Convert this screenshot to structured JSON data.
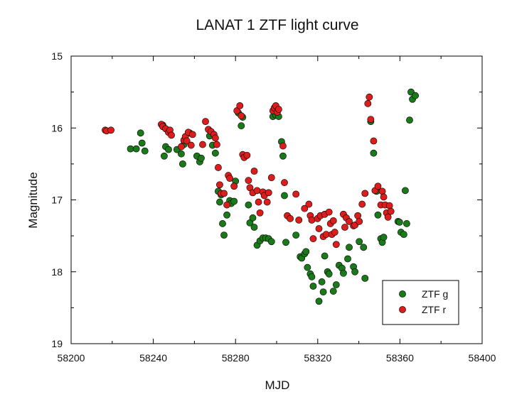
{
  "chart_data": {
    "type": "scatter",
    "title": "LANAT 1 ZTF light curve",
    "xlabel": "MJD",
    "ylabel": "Magnitude",
    "xlim": [
      58200,
      58400
    ],
    "ylim": [
      15,
      19
    ],
    "y_inverted": true,
    "x_ticks": [
      58200,
      58240,
      58280,
      58320,
      58360,
      58400
    ],
    "y_ticks": [
      15,
      16,
      17,
      18,
      19
    ],
    "grid": false,
    "legend_position": "bottom-right",
    "series": [
      {
        "name": "ZTF g",
        "color": "#1a7a1a",
        "points": [
          [
            58228.9,
            16.29
          ],
          [
            58231.7,
            16.29
          ],
          [
            58233.8,
            16.07
          ],
          [
            58234.5,
            16.21
          ],
          [
            58235.9,
            16.32
          ],
          [
            58244.6,
            15.96
          ],
          [
            58245.3,
            16.39
          ],
          [
            58246.0,
            16.26
          ],
          [
            58247.4,
            16.3
          ],
          [
            58251.5,
            16.3
          ],
          [
            58253.6,
            16.36
          ],
          [
            58254.3,
            16.5
          ],
          [
            58254.9,
            16.23
          ],
          [
            58257.7,
            16.07
          ],
          [
            58261.2,
            16.39
          ],
          [
            58262.6,
            16.47
          ],
          [
            58263.3,
            16.42
          ],
          [
            58267.4,
            16.11
          ],
          [
            58268.8,
            16.24
          ],
          [
            58270.2,
            16.35
          ],
          [
            58271.6,
            16.88
          ],
          [
            58272.3,
            17.03
          ],
          [
            58273.0,
            16.93
          ],
          [
            58273.7,
            17.33
          ],
          [
            58274.4,
            17.49
          ],
          [
            58275.8,
            17.21
          ],
          [
            58277.2,
            17.01
          ],
          [
            58277.9,
            17.05
          ],
          [
            58279.3,
            17.02
          ],
          [
            58280.0,
            16.74
          ],
          [
            58281.4,
            15.79
          ],
          [
            58282.8,
            15.97
          ],
          [
            58283.5,
            15.85
          ],
          [
            58286.3,
            17.07
          ],
          [
            58287.0,
            17.32
          ],
          [
            58288.4,
            17.25
          ],
          [
            58289.1,
            17.38
          ],
          [
            58290.5,
            17.63
          ],
          [
            58291.9,
            17.57
          ],
          [
            58293.3,
            17.53
          ],
          [
            58294.7,
            17.53
          ],
          [
            58296.1,
            17.54
          ],
          [
            58297.5,
            17.58
          ],
          [
            58298.2,
            15.84
          ],
          [
            58299.6,
            15.82
          ],
          [
            58301.0,
            15.84
          ],
          [
            58302.4,
            16.19
          ],
          [
            58303.1,
            16.39
          ],
          [
            58303.8,
            16.94
          ],
          [
            58304.5,
            17.59
          ],
          [
            58309.4,
            17.49
          ],
          [
            58311.5,
            17.79
          ],
          [
            58312.2,
            17.81
          ],
          [
            58313.6,
            17.75
          ],
          [
            58314.3,
            17.72
          ],
          [
            58315.0,
            17.94
          ],
          [
            58316.4,
            18.03
          ],
          [
            58317.1,
            18.07
          ],
          [
            58317.8,
            18.2
          ],
          [
            58320.6,
            18.41
          ],
          [
            58322.0,
            18.14
          ],
          [
            58322.7,
            18.28
          ],
          [
            58323.4,
            17.78
          ],
          [
            58324.8,
            18.0
          ],
          [
            58325.5,
            18.03
          ],
          [
            58327.6,
            18.27
          ],
          [
            58329.0,
            18.18
          ],
          [
            58330.4,
            17.91
          ],
          [
            58331.8,
            17.95
          ],
          [
            58332.5,
            18.02
          ],
          [
            58334.6,
            17.82
          ],
          [
            58335.3,
            17.66
          ],
          [
            58337.4,
            17.93
          ],
          [
            58338.1,
            18.0
          ],
          [
            58340.2,
            17.58
          ],
          [
            58342.3,
            17.66
          ],
          [
            58343.0,
            18.09
          ],
          [
            58345.8,
            15.91
          ],
          [
            58347.2,
            16.35
          ],
          [
            58348.6,
            16.88
          ],
          [
            58349.3,
            17.21
          ],
          [
            58350.7,
            17.54
          ],
          [
            58351.4,
            17.59
          ],
          [
            58352.1,
            17.52
          ],
          [
            58359.1,
            17.3
          ],
          [
            58359.8,
            17.31
          ],
          [
            58360.5,
            17.45
          ],
          [
            58361.9,
            17.48
          ],
          [
            58362.6,
            16.87
          ],
          [
            58363.3,
            17.33
          ],
          [
            58364.7,
            15.89
          ],
          [
            58365.4,
            15.5
          ],
          [
            58366.1,
            15.6
          ],
          [
            58367.5,
            15.55
          ]
        ]
      },
      {
        "name": "ZTF r",
        "color": "#dd1c1c",
        "points": [
          [
            58216.6,
            16.03
          ],
          [
            58217.3,
            16.04
          ],
          [
            58219.4,
            16.03
          ],
          [
            58243.9,
            15.95
          ],
          [
            58244.6,
            15.98
          ],
          [
            58246.0,
            16.01
          ],
          [
            58247.4,
            16.06
          ],
          [
            58248.1,
            16.03
          ],
          [
            58248.8,
            16.1
          ],
          [
            58253.6,
            16.26
          ],
          [
            58254.9,
            16.17
          ],
          [
            58255.6,
            16.12
          ],
          [
            58256.3,
            16.18
          ],
          [
            58257.0,
            16.06
          ],
          [
            58258.4,
            16.24
          ],
          [
            58259.1,
            16.09
          ],
          [
            58264.0,
            16.23
          ],
          [
            58265.4,
            15.91
          ],
          [
            58266.8,
            16.02
          ],
          [
            58268.1,
            16.05
          ],
          [
            58269.5,
            16.09
          ],
          [
            58270.2,
            16.14
          ],
          [
            58270.9,
            16.23
          ],
          [
            58271.6,
            16.55
          ],
          [
            58272.3,
            16.79
          ],
          [
            58273.0,
            16.91
          ],
          [
            58274.4,
            16.91
          ],
          [
            58275.8,
            17.07
          ],
          [
            58276.5,
            16.66
          ],
          [
            58277.2,
            16.7
          ],
          [
            58279.3,
            16.81
          ],
          [
            58280.7,
            15.76
          ],
          [
            58282.1,
            15.69
          ],
          [
            58282.8,
            15.83
          ],
          [
            58283.5,
            16.37
          ],
          [
            58284.2,
            16.41
          ],
          [
            58285.6,
            16.38
          ],
          [
            58286.3,
            16.73
          ],
          [
            58287.0,
            16.83
          ],
          [
            58288.4,
            16.9
          ],
          [
            58289.1,
            16.6
          ],
          [
            58290.5,
            16.87
          ],
          [
            58291.2,
            17.03
          ],
          [
            58291.9,
            17.18
          ],
          [
            58293.3,
            16.89
          ],
          [
            58294.0,
            16.94
          ],
          [
            58295.4,
            17.03
          ],
          [
            58296.1,
            16.9
          ],
          [
            58297.5,
            16.69
          ],
          [
            58298.2,
            15.76
          ],
          [
            58298.9,
            15.72
          ],
          [
            58299.6,
            15.69
          ],
          [
            58300.3,
            15.78
          ],
          [
            58301.0,
            15.74
          ],
          [
            58303.1,
            16.25
          ],
          [
            58303.8,
            16.76
          ],
          [
            58305.2,
            17.22
          ],
          [
            58306.6,
            17.26
          ],
          [
            58309.4,
            16.92
          ],
          [
            58310.8,
            17.28
          ],
          [
            58313.6,
            17.12
          ],
          [
            58315.7,
            17.06
          ],
          [
            58316.4,
            17.22
          ],
          [
            58317.1,
            17.28
          ],
          [
            58317.8,
            17.54
          ],
          [
            58319.9,
            17.26
          ],
          [
            58320.6,
            17.4
          ],
          [
            58321.3,
            17.22
          ],
          [
            58322.7,
            17.51
          ],
          [
            58323.4,
            17.2
          ],
          [
            58324.1,
            17.48
          ],
          [
            58325.5,
            17.17
          ],
          [
            58326.2,
            17.33
          ],
          [
            58326.9,
            17.48
          ],
          [
            58327.6,
            17.29
          ],
          [
            58328.3,
            17.45
          ],
          [
            58329.0,
            17.62
          ],
          [
            58332.5,
            17.2
          ],
          [
            58333.2,
            17.38
          ],
          [
            58333.9,
            17.25
          ],
          [
            58335.3,
            17.3
          ],
          [
            58337.4,
            17.36
          ],
          [
            58338.1,
            17.35
          ],
          [
            58339.5,
            17.22
          ],
          [
            58340.2,
            17.3
          ],
          [
            58341.6,
            17.06
          ],
          [
            58343.0,
            16.91
          ],
          [
            58344.4,
            15.66
          ],
          [
            58345.1,
            15.57
          ],
          [
            58345.8,
            15.88
          ],
          [
            58347.2,
            16.18
          ],
          [
            58347.9,
            16.87
          ],
          [
            58349.3,
            16.81
          ],
          [
            58350.7,
            17.07
          ],
          [
            58351.4,
            16.88
          ],
          [
            58352.1,
            16.96
          ],
          [
            58352.8,
            17.07
          ],
          [
            58353.5,
            17.18
          ],
          [
            58354.2,
            17.24
          ],
          [
            58354.9,
            17.08
          ],
          [
            58355.6,
            17.16
          ]
        ]
      }
    ]
  }
}
